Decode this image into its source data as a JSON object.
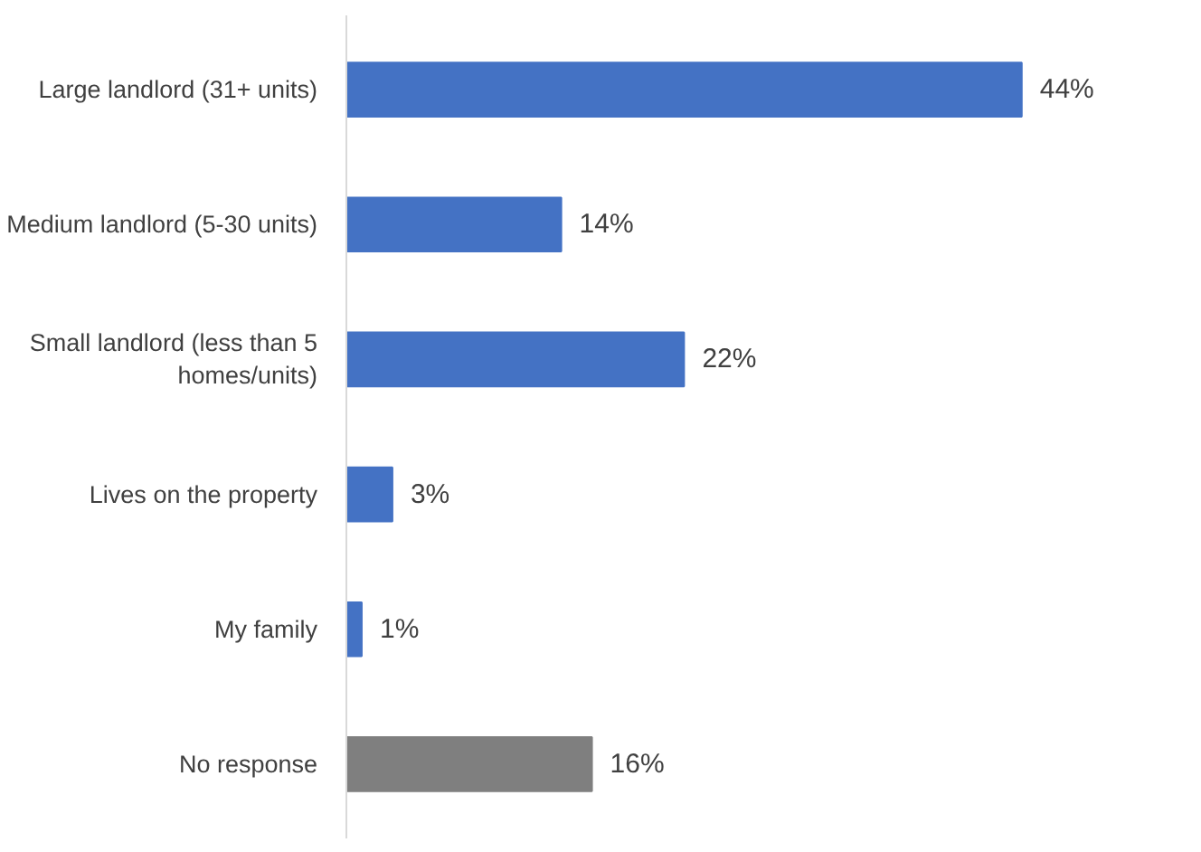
{
  "chart_data": {
    "type": "bar",
    "orientation": "horizontal",
    "categories": [
      "Large landlord (31+ units)",
      "Medium landlord (5-30 units)",
      "Small landlord (less than 5 homes/units)",
      "Lives on the property",
      "My family",
      "No response"
    ],
    "values": [
      44,
      14,
      22,
      3,
      1,
      16
    ],
    "value_labels": [
      "44%",
      "14%",
      "22%",
      "3%",
      "1%",
      "16%"
    ],
    "colors": [
      "#4472c4",
      "#4472c4",
      "#4472c4",
      "#4472c4",
      "#4472c4",
      "#7f7f7f"
    ],
    "grid": false
  }
}
